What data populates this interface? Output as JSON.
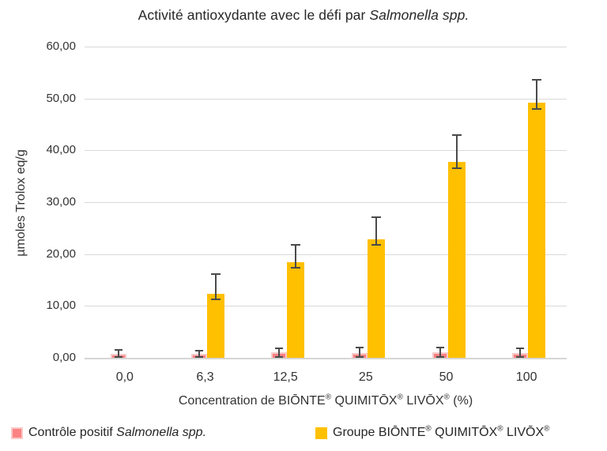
{
  "title": {
    "prefix": "Activité antioxydante avec le défi par ",
    "italic": "Salmonella spp."
  },
  "y_axis": {
    "title": "µmoles Trolox eq/g"
  },
  "x_axis": {
    "title": "Concentration de BIŌNTE® QUIMITŌX® LIVŌX® (%)"
  },
  "legend": {
    "items": [
      {
        "prefix": "Contrôle positif ",
        "italic": "Salmonella spp.",
        "color": "#fb8383",
        "border": "#f8c9c7"
      },
      {
        "prefix": "Groupe BIŌNTE® QUIMITŌX® LIVŌX®",
        "italic": "",
        "color": "#ffc000",
        "border": "#ffc000"
      }
    ]
  },
  "chart_data": {
    "type": "bar",
    "title": "Activité antioxydante avec le défi par Salmonella spp.",
    "xlabel": "Concentration de BIŌNTE® QUIMITŌX® LIVŌX® (%)",
    "ylabel": "µmoles Trolox eq/g",
    "categories": [
      "0,0",
      "6,3",
      "12,5",
      "25",
      "50",
      "100"
    ],
    "series": [
      {
        "name": "Contrôle positif Salmonella spp.",
        "color": "#fb8080",
        "values": [
          0.8,
          0.7,
          1.0,
          0.9,
          1.0,
          0.9
        ],
        "err_hi": [
          1.5,
          1.4,
          1.9,
          2.0,
          2.0,
          1.8
        ],
        "err_lo": [
          0.1,
          0.1,
          0.15,
          0.1,
          0.15,
          0.1
        ]
      },
      {
        "name": "Groupe BIŌNTE® QUIMITŌX® LIVŌX®",
        "color": "#ffc000",
        "values": [
          0,
          12.4,
          18.5,
          22.9,
          37.8,
          49.2
        ],
        "err_hi": [
          null,
          16.1,
          21.8,
          27.1,
          43.0,
          53.6
        ],
        "err_lo": [
          null,
          11.3,
          17.3,
          21.8,
          36.5,
          48.0
        ]
      }
    ],
    "ylim": [
      0,
      60
    ],
    "ytick_step": 10,
    "ytick_labels": [
      "0,00",
      "10,00",
      "20,00",
      "30,00",
      "40,00",
      "50,00",
      "60,00"
    ],
    "grid": true,
    "legend_position": "bottom"
  }
}
